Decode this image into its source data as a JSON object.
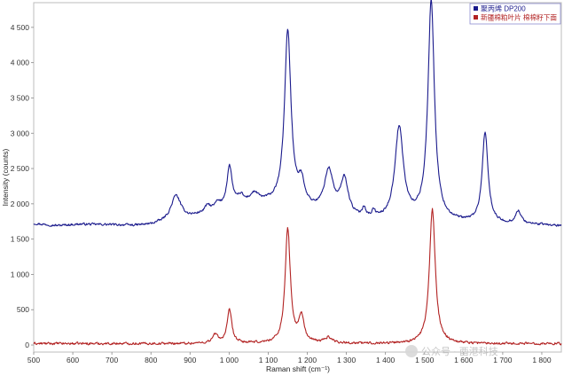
{
  "chart_data": {
    "type": "line",
    "xlabel": "Raman shift (cm⁻¹)",
    "ylabel": "Intensity (counts)",
    "xlim": [
      500,
      1850
    ],
    "ylim": [
      -100,
      4850
    ],
    "x_ticks": [
      500,
      600,
      700,
      800,
      900,
      1000,
      1100,
      1200,
      1300,
      1400,
      1500,
      1600,
      1700,
      1800
    ],
    "x_tick_labels": [
      "500",
      "600",
      "700",
      "800",
      "900",
      "1 000",
      "1 100",
      "1 200",
      "1 300",
      "1 400",
      "1 500",
      "1 600",
      "1 700",
      "1 800"
    ],
    "y_ticks": [
      0,
      500,
      1000,
      1500,
      2000,
      2500,
      3000,
      3500,
      4000,
      4500
    ],
    "y_tick_labels": [
      "0",
      "500",
      "1 000",
      "1 500",
      "2 000",
      "2 500",
      "3 000",
      "3 500",
      "4 000",
      "4 500"
    ],
    "legend_position": "top-right",
    "series": [
      {
        "name": "聚丙烯 DP200",
        "color": "#1a1a8c",
        "baseline": [
          [
            500,
            1720
          ],
          [
            560,
            1690
          ],
          [
            620,
            1710
          ],
          [
            700,
            1700
          ],
          [
            760,
            1690
          ],
          [
            800,
            1700
          ],
          [
            900,
            1800
          ],
          [
            1000,
            1950
          ],
          [
            1050,
            2000
          ],
          [
            1100,
            2000
          ],
          [
            1200,
            1900
          ],
          [
            1300,
            1780
          ],
          [
            1400,
            1740
          ],
          [
            1450,
            1760
          ],
          [
            1500,
            1760
          ],
          [
            1600,
            1720
          ],
          [
            1700,
            1700
          ],
          [
            1800,
            1700
          ],
          [
            1850,
            1680
          ]
        ],
        "peaks": [
          [
            864,
            350,
            15
          ],
          [
            945,
            90,
            8
          ],
          [
            970,
            80,
            8
          ],
          [
            1001,
            560,
            8
          ],
          [
            1030,
            100,
            8
          ],
          [
            1065,
            120,
            12
          ],
          [
            1150,
            2480,
            10
          ],
          [
            1185,
            320,
            10
          ],
          [
            1255,
            600,
            14
          ],
          [
            1295,
            520,
            12
          ],
          [
            1345,
            130,
            5
          ],
          [
            1370,
            90,
            5
          ],
          [
            1435,
            1300,
            13
          ],
          [
            1517,
            3100,
            10
          ],
          [
            1655,
            1280,
            9
          ],
          [
            1740,
            180,
            9
          ]
        ],
        "noise": 14
      },
      {
        "name": "新疆棉粕叶片 棉棉籽下面",
        "color": "#b22222",
        "baseline": [
          [
            500,
            20
          ],
          [
            1850,
            20
          ]
        ],
        "peaks": [
          [
            965,
            120,
            9
          ],
          [
            1001,
            470,
            7
          ],
          [
            1150,
            1620,
            8
          ],
          [
            1185,
            370,
            8
          ],
          [
            1254,
            80,
            12
          ],
          [
            1520,
            1900,
            9
          ]
        ],
        "noise": 15
      }
    ]
  },
  "watermark": "公众号 · 酉港科技"
}
